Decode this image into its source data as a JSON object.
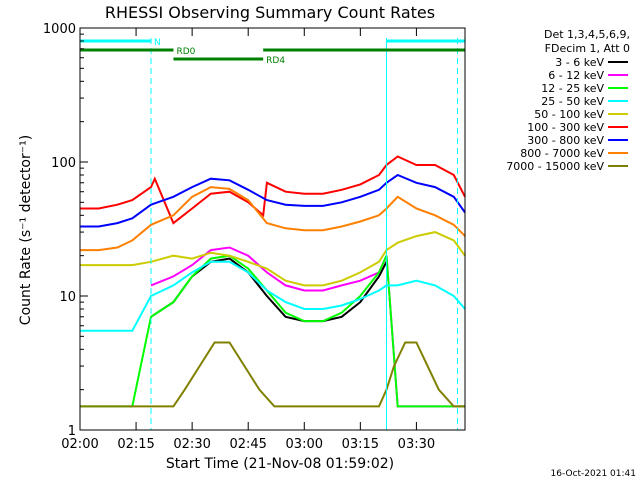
{
  "chart_data": {
    "type": "line",
    "title": "RHESSI Observing Summary Count Rates",
    "xlabel": "Start Time (21-Nov-08 01:59:02)",
    "ylabel": "Count Rate (s⁻¹ detector⁻¹)",
    "x_ticks": [
      "02:00",
      "02:15",
      "02:30",
      "02:45",
      "03:00",
      "03:15",
      "03:30"
    ],
    "x_tick_values": [
      0,
      15,
      30,
      45,
      60,
      75,
      90
    ],
    "xlim": [
      0,
      103
    ],
    "y_scale": "log",
    "ylim": [
      1,
      1000
    ],
    "y_ticks": [
      "1",
      "10",
      "100",
      "1000"
    ],
    "y_tick_values": [
      1,
      10,
      100,
      1000
    ],
    "grid": false,
    "legend_title": [
      "Det 1,3,4,5,6,9,",
      "FDecim 1, Att 0"
    ],
    "legend_position": "right",
    "footer": "16-Oct-2021 01:41",
    "states": [
      {
        "name": "N",
        "color": "#00ffff",
        "level": 1,
        "segments": [
          [
            0,
            19
          ],
          [
            82,
            103
          ]
        ]
      },
      {
        "name": "RD0",
        "color": "#008000",
        "level": 2,
        "segments": [
          [
            0,
            25
          ],
          [
            49,
            103
          ]
        ]
      },
      {
        "name": "RD4",
        "color": "#008000",
        "level": 3,
        "segments": [
          [
            25,
            49
          ]
        ]
      }
    ],
    "state_boundaries_dashed": [
      19,
      101
    ],
    "state_boundaries_solid": [
      82
    ],
    "series": [
      {
        "name": "3 - 6 keV",
        "color": "#000000",
        "x": [
          14,
          19,
          25,
          30,
          35,
          40,
          45,
          50,
          55,
          60,
          65,
          70,
          75,
          80,
          82
        ],
        "y": [
          null,
          7,
          9,
          14,
          18,
          19,
          15,
          10,
          7,
          6.5,
          6.5,
          7,
          9,
          14,
          18
        ]
      },
      {
        "name": "6 - 12 keV",
        "color": "#ff00ff",
        "x": [
          14,
          19,
          25,
          30,
          35,
          40,
          45,
          50,
          55,
          60,
          65,
          70,
          75,
          80,
          82,
          85,
          90,
          95,
          100,
          103
        ],
        "y": [
          null,
          12,
          14,
          17,
          22,
          23,
          20,
          15,
          12,
          11,
          11,
          12,
          13,
          15,
          20,
          1.5,
          1.5,
          1.5,
          1.5,
          1.5
        ]
      },
      {
        "name": "12 - 25 keV",
        "color": "#00ff00",
        "x": [
          0,
          14,
          19,
          25,
          30,
          35,
          40,
          45,
          50,
          55,
          60,
          65,
          70,
          75,
          80,
          82,
          85,
          90,
          95,
          100,
          103
        ],
        "y": [
          1.5,
          1.5,
          7,
          9,
          14,
          19,
          20,
          16,
          11,
          7.5,
          6.5,
          6.5,
          7.5,
          10,
          15,
          20,
          1.5,
          1.5,
          1.5,
          1.5,
          1.5
        ]
      },
      {
        "name": "25 - 50 keV",
        "color": "#00ffff",
        "x": [
          0,
          5,
          10,
          14,
          19,
          25,
          30,
          35,
          40,
          45,
          50,
          55,
          60,
          65,
          70,
          75,
          80,
          82,
          85,
          90,
          95,
          100,
          103
        ],
        "y": [
          5.5,
          5.5,
          5.5,
          5.5,
          10,
          12,
          15,
          18,
          18,
          15,
          11,
          9,
          8,
          8,
          8.5,
          9.5,
          11,
          12,
          12,
          13,
          12,
          10,
          8
        ]
      },
      {
        "name": "50 - 100 keV",
        "color": "#cccc00",
        "x": [
          0,
          5,
          10,
          14,
          19,
          25,
          30,
          35,
          40,
          45,
          50,
          55,
          60,
          65,
          70,
          75,
          80,
          82,
          85,
          90,
          95,
          100,
          103
        ],
        "y": [
          17,
          17,
          17,
          17,
          18,
          20,
          19,
          21,
          20,
          18,
          16,
          13,
          12,
          12,
          13,
          15,
          18,
          22,
          25,
          28,
          30,
          26,
          20
        ]
      },
      {
        "name": "100 - 300 keV",
        "color": "#ff0000",
        "x": [
          0,
          5,
          10,
          14,
          19,
          20,
          25,
          30,
          35,
          40,
          45,
          49,
          50,
          55,
          60,
          65,
          70,
          75,
          80,
          82,
          85,
          90,
          95,
          100,
          103
        ],
        "y": [
          45,
          45,
          48,
          52,
          65,
          75,
          35,
          45,
          58,
          60,
          50,
          40,
          70,
          60,
          58,
          58,
          62,
          68,
          80,
          95,
          110,
          95,
          95,
          80,
          55
        ]
      },
      {
        "name": "300 - 800 keV",
        "color": "#0000ff",
        "x": [
          0,
          5,
          10,
          14,
          19,
          25,
          30,
          35,
          40,
          45,
          50,
          55,
          60,
          65,
          70,
          75,
          80,
          82,
          85,
          90,
          95,
          100,
          103
        ],
        "y": [
          33,
          33,
          35,
          38,
          48,
          55,
          65,
          75,
          73,
          62,
          52,
          48,
          47,
          47,
          50,
          55,
          62,
          70,
          80,
          70,
          65,
          55,
          42
        ]
      },
      {
        "name": "800 - 7000 keV",
        "color": "#ff8000",
        "x": [
          0,
          5,
          10,
          14,
          19,
          25,
          30,
          35,
          40,
          45,
          50,
          55,
          60,
          65,
          70,
          75,
          80,
          82,
          85,
          90,
          95,
          100,
          103
        ],
        "y": [
          22,
          22,
          23,
          26,
          34,
          40,
          55,
          65,
          63,
          52,
          35,
          32,
          31,
          31,
          33,
          36,
          40,
          45,
          55,
          45,
          40,
          34,
          28
        ]
      },
      {
        "name": "7000 - 15000 keV",
        "color": "#808000",
        "x": [
          0,
          14,
          19,
          25,
          28,
          32,
          36,
          40,
          44,
          48,
          52,
          60,
          70,
          80,
          82,
          84,
          87,
          90,
          93,
          96,
          100,
          103
        ],
        "y": [
          1.5,
          1.5,
          1.5,
          1.5,
          2,
          3,
          4.5,
          4.5,
          3,
          2,
          1.5,
          1.5,
          1.5,
          1.5,
          2,
          3,
          4.5,
          4.5,
          3,
          2,
          1.5,
          1.5
        ]
      }
    ]
  }
}
